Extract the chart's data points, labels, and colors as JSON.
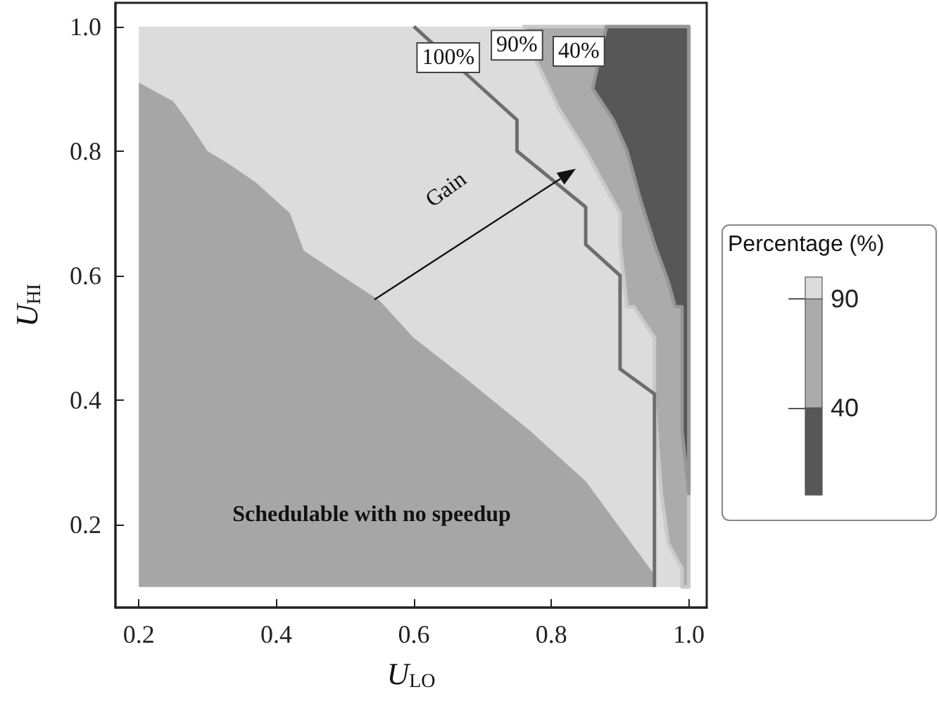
{
  "chart_data": {
    "type": "area",
    "xlabel": "U$_{LO}$",
    "ylabel": "U$_{HI}$",
    "clabel": "Percentage (%)",
    "clim": [
      0,
      100
    ],
    "cticks": [
      40,
      90
    ],
    "xlim": [
      0.166,
      1.026
    ],
    "ylim": [
      0.067,
      1.038
    ],
    "xticks": [
      0.2,
      0.4,
      0.6,
      0.8,
      {
        "value": 1.0,
        "label": "1.0"
      }
    ],
    "yticks": [
      0.2,
      0.4,
      0.6,
      0.8,
      {
        "value": 1.0,
        "label": "1.0"
      }
    ],
    "grid": false,
    "series": [
      {
        "type": "line",
        "color": "#6e6e6e",
        "x": [
          0.6,
          0.68,
          0.75,
          0.75,
          0.85,
          0.85,
          0.9,
          0.9,
          0.9,
          0.95,
          0.95
        ],
        "values": [
          1.0,
          0.92,
          0.85,
          0.8,
          0.71,
          0.65,
          0.6,
          0.59,
          0.45,
          0.41,
          0.1
        ]
      },
      {
        "color": "#dcdcdc",
        "x": [
          0.2,
          0.2,
          0.76,
          0.78,
          0.81,
          0.85,
          0.88,
          0.9,
          0.9,
          0.91,
          0.92,
          0.95,
          0.95,
          0.96,
          0.97,
          0.99,
          0.99,
          0.95,
          0.95,
          0.85,
          0.77,
          0.67,
          0.6,
          0.55,
          0.44,
          0.42,
          0.4,
          0.37,
          0.33,
          0.3,
          0.27,
          0.25
        ],
        "values": [
          0.91,
          1.0,
          1.0,
          0.94,
          0.87,
          0.8,
          0.74,
          0.7,
          0.65,
          0.55,
          0.55,
          0.5,
          0.4,
          0.25,
          0.17,
          0.13,
          0.1,
          0.1,
          0.12,
          0.27,
          0.35,
          0.44,
          0.5,
          0.56,
          0.64,
          0.7,
          0.72,
          0.75,
          0.78,
          0.8,
          0.85,
          0.88
        ]
      },
      {
        "color": "#a6a6a6",
        "x": [
          0.2,
          0.2,
          0.25,
          0.27,
          0.3,
          0.33,
          0.37,
          0.4,
          0.42,
          0.44,
          0.55,
          0.6,
          0.67,
          0.77,
          0.85,
          0.95,
          0.95
        ],
        "values": [
          0.1,
          0.91,
          0.88,
          0.85,
          0.8,
          0.78,
          0.75,
          0.72,
          0.7,
          0.64,
          0.56,
          0.5,
          0.44,
          0.35,
          0.27,
          0.12,
          0.1
        ]
      },
      {
        "color": "#ababab",
        "line_style": "solid",
        "x": [
          0.76,
          0.78,
          0.81,
          0.85,
          0.88,
          0.9,
          0.9,
          0.91,
          0.92,
          0.95,
          0.95,
          0.96,
          0.97,
          0.99,
          0.99,
          1.0,
          1.0,
          0.99,
          0.99,
          0.98,
          0.97,
          0.95,
          0.93,
          0.91,
          0.89,
          0.86,
          0.88
        ],
        "values": [
          1.0,
          0.94,
          0.87,
          0.8,
          0.74,
          0.7,
          0.65,
          0.55,
          0.55,
          0.5,
          0.4,
          0.25,
          0.17,
          0.13,
          0.1,
          0.1,
          0.25,
          0.35,
          0.55,
          0.55,
          0.59,
          0.65,
          0.72,
          0.8,
          0.85,
          0.9,
          1.0
        ]
      },
      {
        "color": "#575757",
        "line_style": "solid",
        "x": [
          0.88,
          0.86,
          0.89,
          0.91,
          0.93,
          0.95,
          0.97,
          0.98,
          0.99,
          0.99,
          1.0,
          1.0
        ],
        "values": [
          1.0,
          0.9,
          0.85,
          0.8,
          0.72,
          0.65,
          0.59,
          0.55,
          0.55,
          0.35,
          0.25,
          1.0
        ]
      }
    ],
    "annotations": [
      "Schedulable with no speedup",
      "Gain",
      {
        "text": "100%",
        "x": 0.65,
        "y": 0.95
      },
      {
        "text": "90%",
        "x": 0.75,
        "y": 0.97
      },
      {
        "text": "40%",
        "x": 0.84,
        "y": 0.96
      }
    ]
  }
}
